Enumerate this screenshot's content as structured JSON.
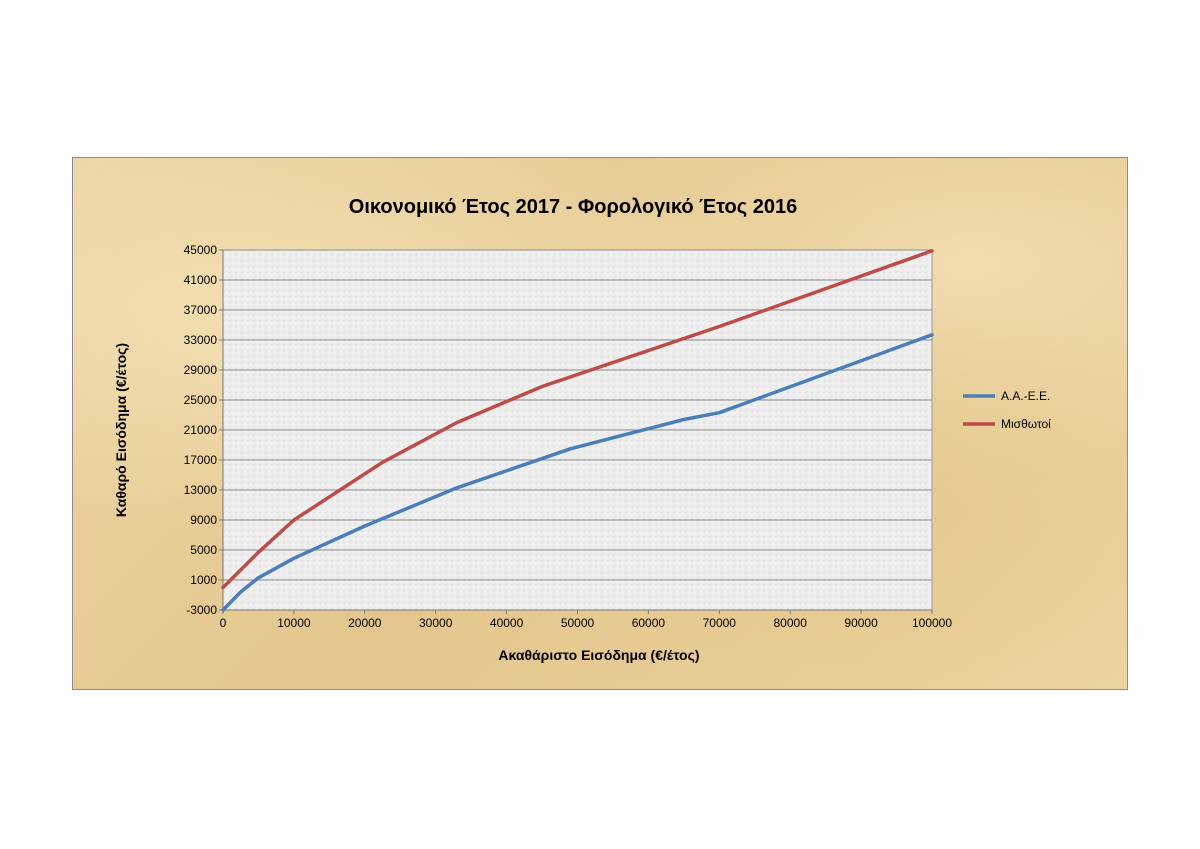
{
  "chart_data": {
    "type": "line",
    "title": "Οικονομικό Έτος 2017 - Φορολογικό Έτος 2016",
    "xlabel": "Ακαθάριστο Εισόδημα (€/έτος)",
    "ylabel": "Καθαρό Εισόδημα (€/έτος)",
    "xlim": [
      0,
      100000
    ],
    "ylim": [
      -3000,
      45000
    ],
    "x_ticks": [
      "0",
      "10000",
      "20000",
      "30000",
      "40000",
      "50000",
      "60000",
      "70000",
      "80000",
      "90000",
      "100000"
    ],
    "y_ticks": [
      "-3000",
      "1000",
      "5000",
      "9000",
      "13000",
      "17000",
      "21000",
      "25000",
      "29000",
      "33000",
      "37000",
      "41000",
      "45000"
    ],
    "grid": true,
    "legend_position": "right",
    "series": [
      {
        "name": "Α.Α.-Ε.Ε.",
        "color": "#4a7ebb",
        "x": [
          0,
          2500,
          5000,
          10000,
          20000,
          33000,
          49000,
          65000,
          70000,
          100000
        ],
        "y": [
          -3000,
          -600,
          1300,
          3900,
          8200,
          13300,
          18500,
          22400,
          23300,
          33700
        ]
      },
      {
        "name": "Μισθωτοί",
        "color": "#be4b48",
        "x": [
          0,
          5000,
          10000,
          22500,
          33000,
          45000,
          70000,
          100000
        ],
        "y": [
          0,
          4700,
          9000,
          16700,
          22000,
          26800,
          34800,
          44900
        ]
      }
    ]
  }
}
